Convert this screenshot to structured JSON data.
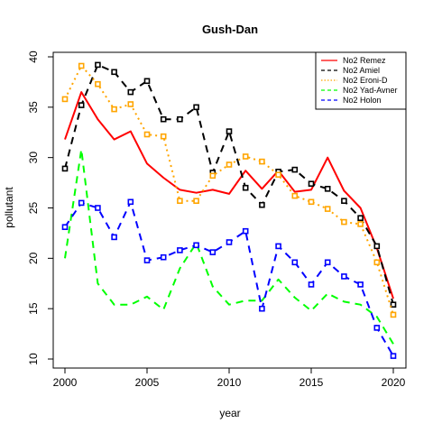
{
  "chart_data": {
    "type": "line",
    "title": "Gush-Dan",
    "xlabel": "year",
    "ylabel": "pollutant",
    "xlim": [
      2000,
      2020
    ],
    "ylim": [
      10,
      40
    ],
    "xticks": [
      2000,
      2005,
      2010,
      2015,
      2020
    ],
    "yticks": [
      10,
      15,
      20,
      25,
      30,
      35,
      40
    ],
    "legend_position": "top-right",
    "grid": false,
    "x": [
      2000,
      2001,
      2002,
      2003,
      2004,
      2005,
      2006,
      2007,
      2008,
      2009,
      2010,
      2011,
      2012,
      2013,
      2014,
      2015,
      2016,
      2017,
      2018,
      2019,
      2020
    ],
    "series": [
      {
        "name": "No2 Remez",
        "color": "#ff0000",
        "line_style": "solid",
        "markers": false,
        "values": [
          31.8,
          36.5,
          33.8,
          31.8,
          32.6,
          29.4,
          28.0,
          26.8,
          26.5,
          26.8,
          26.4,
          28.7,
          26.9,
          28.7,
          26.6,
          26.8,
          30.0,
          26.7,
          25.0,
          21.0,
          16.0
        ]
      },
      {
        "name": "No2 Amiel",
        "color": "#000000",
        "line_style": "dashed",
        "markers": true,
        "values": [
          28.9,
          35.2,
          39.2,
          38.5,
          36.5,
          37.6,
          33.8,
          33.8,
          35.0,
          28.5,
          32.6,
          27.0,
          25.3,
          28.6,
          28.8,
          27.4,
          26.9,
          25.7,
          24.0,
          21.2,
          15.4
        ]
      },
      {
        "name": "No2 Eroni-D",
        "color": "#ffa500",
        "line_style": "dotted",
        "markers": true,
        "values": [
          35.8,
          39.1,
          37.3,
          34.8,
          35.3,
          32.3,
          32.1,
          25.7,
          25.7,
          28.2,
          29.3,
          30.1,
          29.6,
          28.3,
          26.2,
          25.6,
          24.9,
          23.6,
          23.4,
          19.6,
          14.4
        ]
      },
      {
        "name": "No2 Yad-Avner",
        "color": "#00ff00",
        "line_style": "dashed",
        "markers": false,
        "values": [
          20.0,
          30.8,
          17.5,
          15.4,
          15.4,
          16.2,
          14.9,
          19.0,
          21.5,
          17.2,
          15.4,
          15.8,
          15.8,
          17.9,
          16.1,
          14.8,
          16.5,
          15.7,
          15.4,
          14.2,
          11.5
        ]
      },
      {
        "name": "No2 Holon",
        "color": "#0000ff",
        "line_style": "dashed",
        "markers": true,
        "values": [
          23.1,
          25.5,
          25.0,
          22.1,
          25.6,
          19.8,
          20.1,
          20.8,
          21.3,
          20.6,
          21.6,
          22.7,
          15.0,
          21.2,
          19.6,
          17.4,
          19.6,
          18.2,
          17.4,
          13.1,
          10.3
        ]
      }
    ]
  }
}
